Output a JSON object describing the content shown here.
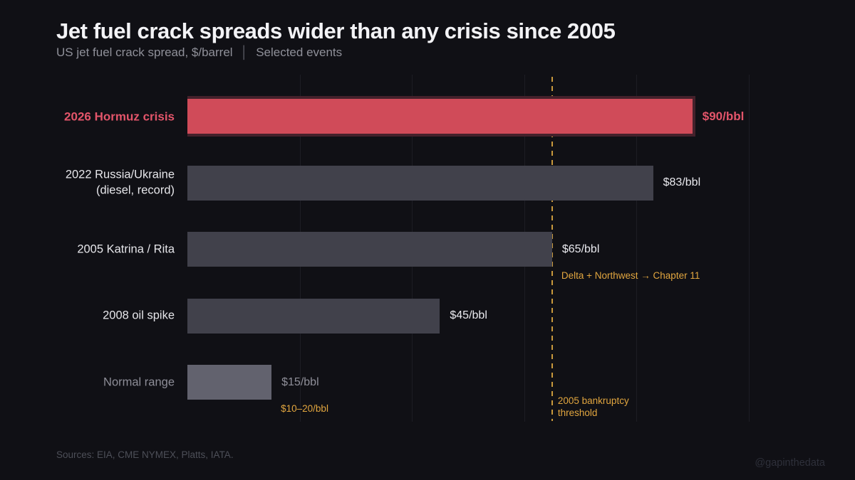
{
  "header": {
    "title": "Jet fuel crack spreads wider than any crisis since 2005",
    "subtitle_left": "US jet fuel crack spread, $/barrel",
    "subtitle_sep": "│",
    "subtitle_right": "Selected events"
  },
  "chart_data": {
    "type": "bar",
    "orientation": "horizontal",
    "title": "Jet fuel crack spreads wider than any crisis since 2005",
    "unit": "$/bbl",
    "xlim": [
      0,
      100
    ],
    "gridline_values": [
      20,
      40,
      60,
      80,
      100
    ],
    "grid": "vertical, faint",
    "categories": [
      "2026 Hormuz crisis",
      "2022 Russia/Ukraine (diesel, record)",
      "2005 Katrina / Rita",
      "2008 oil spike",
      "Normal range"
    ],
    "values": [
      90,
      83,
      65,
      45,
      15
    ],
    "rows": [
      {
        "label_lines": [
          "2026 Hormuz crisis"
        ],
        "value": 90,
        "value_label": "$90/bbl",
        "highlight": true
      },
      {
        "label_lines": [
          "2022 Russia/Ukraine",
          "(diesel, record)"
        ],
        "value": 83,
        "value_label": "$83/bbl"
      },
      {
        "label_lines": [
          "2005 Katrina / Rita"
        ],
        "value": 65,
        "value_label": "$65/bbl",
        "annotation": "Delta + Northwest → Chapter 11"
      },
      {
        "label_lines": [
          "2008 oil spike"
        ],
        "value": 45,
        "value_label": "$45/bbl"
      },
      {
        "label_lines": [
          "Normal range"
        ],
        "value": 15,
        "value_label": "$15/bbl",
        "muted": true,
        "annotation": "$10–20/bbl"
      }
    ],
    "threshold": {
      "value": 65,
      "label_lines": [
        "2005 bankruptcy",
        "threshold"
      ]
    }
  },
  "colors": {
    "background": "#101015",
    "bar": "#41414b",
    "bar_muted": "#62626e",
    "highlight_bar": "#d04b59",
    "highlight_glow": "#44212b",
    "highlight_text": "#e3556a",
    "gold": "#e2a63f",
    "threshold_line": "#c9993c",
    "gridline": "#1d1d24"
  },
  "footer": {
    "sources": "Sources: EIA, CME NYMEX, Platts, IATA.",
    "watermark": "@gapinthedata"
  }
}
